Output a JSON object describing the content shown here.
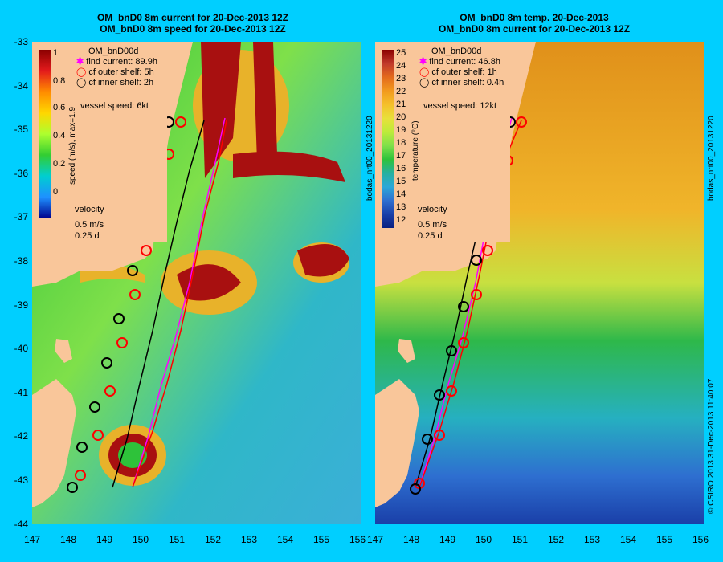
{
  "colors": {
    "background": "#00CFFF",
    "land": "#F9C69A",
    "track_find": "#FF00FF",
    "track_outer": "#FF0000",
    "track_inner": "#000000"
  },
  "left": {
    "title_line1": "OM_bnD0 8m current for 20-Dec-2013 12Z",
    "title_line2": "OM_bnD0 8m speed for 20-Dec-2013 12Z",
    "legend_title": "OM_bnD00d",
    "legend_find": "find current: 89.9h",
    "legend_outer": "cf outer shelf: 5h",
    "legend_inner": "cf inner shelf: 2h",
    "vessel_speed": "vessel speed: 6kt",
    "colorbar_label": "speed (m/s), max=1.9",
    "colorbar_ticks": [
      "1",
      "0.8",
      "0.6",
      "0.4",
      "0.2",
      "0"
    ],
    "velocity_title": "velocity",
    "velocity_scale": "0.5 m/s",
    "velocity_time": "0.25 d",
    "side_label": "bodas_nrt00_20131220"
  },
  "right": {
    "title_line1": "OM_bnD0 8m temp. 20-Dec-2013",
    "title_line2": "OM_bnD0 8m current for 20-Dec-2013 12Z",
    "legend_title": "OM_bnD00d",
    "legend_find": "find current: 46.8h",
    "legend_outer": "cf outer shelf: 1h",
    "legend_inner": "cf inner shelf: 0.4h",
    "vessel_speed": "vessel speed: 12kt",
    "colorbar_label": "temperature (°C)",
    "colorbar_ticks": [
      "25",
      "24",
      "23",
      "22",
      "21",
      "20",
      "19",
      "18",
      "17",
      "16",
      "15",
      "14",
      "13",
      "12"
    ],
    "velocity_title": "velocity",
    "velocity_scale": "0.5 m/s",
    "velocity_time": "0.25 d",
    "side_label": "bodas_nrt00_20131220",
    "copyright": "© CSIRO 2013   31-Dec-2013 11:40:07"
  },
  "axes": {
    "y_ticks": [
      "-33",
      "-34",
      "-35",
      "-36",
      "-37",
      "-38",
      "-39",
      "-40",
      "-41",
      "-42",
      "-43",
      "-44"
    ],
    "x_ticks": [
      "147",
      "148",
      "149",
      "150",
      "151",
      "152",
      "153",
      "154",
      "155",
      "156"
    ]
  }
}
